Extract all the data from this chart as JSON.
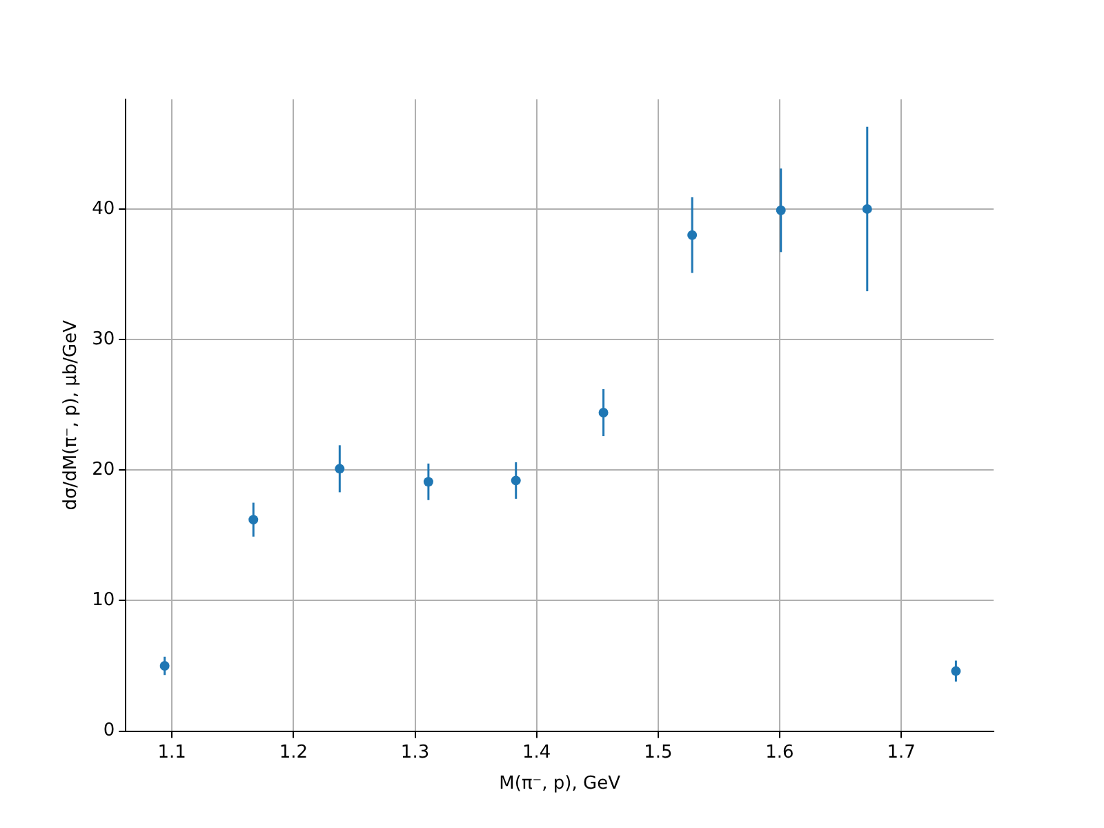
{
  "chart_data": {
    "type": "scatter",
    "xlabel": "M(π⁻, p), GeV",
    "ylabel": "dσ/dM(π⁻, p), μb/GeV",
    "x": [
      1.094,
      1.167,
      1.238,
      1.311,
      1.383,
      1.455,
      1.528,
      1.601,
      1.672,
      1.745
    ],
    "series": [
      {
        "color": "#1f77b4",
        "values": [
          5.0,
          16.2,
          20.1,
          19.1,
          19.2,
          24.4,
          38.0,
          39.9,
          40.0,
          4.6
        ],
        "errors": [
          0.7,
          1.3,
          1.8,
          1.4,
          1.4,
          1.8,
          2.9,
          3.2,
          6.3,
          0.8
        ]
      }
    ],
    "xlim": [
      1.062,
      1.776
    ],
    "xticks": [
      1.1,
      1.2,
      1.3,
      1.4,
      1.5,
      1.6,
      1.7
    ],
    "ylim": [
      0,
      48.4
    ],
    "yticks": [
      0,
      10,
      20,
      30,
      40
    ],
    "grid": true,
    "marker": "circle",
    "legend": false
  }
}
